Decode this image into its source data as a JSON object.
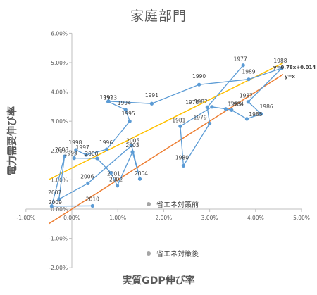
{
  "chart_data": {
    "type": "scatter",
    "title": "家庭部門",
    "xlabel": "実質GDP伸び率",
    "ylabel": "電力需要伸び率",
    "xlim": [
      -0.01,
      0.05
    ],
    "ylim": [
      -0.02,
      0.06
    ],
    "x_ticks": [
      "-1.00%",
      "0.00%",
      "1.00%",
      "2.00%",
      "3.00%",
      "4.00%",
      "5.00%"
    ],
    "y_ticks": [
      "6.00%",
      "5.00%",
      "4.00%",
      "3.00%",
      "2.00%",
      "1.00%",
      "0.00%",
      "-1.00%",
      "-2.00%"
    ],
    "grid": false,
    "colors": {
      "connected_series": "#5b9bd5",
      "trendline": "#ffc000",
      "identity_line": "#ed7d31",
      "legend_marker": "#a5a5a5"
    },
    "points": [
      {
        "label": "1977",
        "x": 0.0373,
        "y": 0.0491
      },
      {
        "label": "1978",
        "x": 0.0295,
        "y": 0.0348
      },
      {
        "label": "1979",
        "x": 0.03,
        "y": 0.0292
      },
      {
        "label": "1980",
        "x": 0.0243,
        "y": 0.0148
      },
      {
        "label": "1981",
        "x": 0.0236,
        "y": 0.0283
      },
      {
        "label": "1982",
        "x": 0.0305,
        "y": 0.0349
      },
      {
        "label": "1983",
        "x": 0.0335,
        "y": 0.0342
      },
      {
        "label": "1984",
        "x": 0.0348,
        "y": 0.0338
      },
      {
        "label": "1985",
        "x": 0.0381,
        "y": 0.0308
      },
      {
        "label": "1986",
        "x": 0.0412,
        "y": 0.0325
      },
      {
        "label": "1987",
        "x": 0.0384,
        "y": 0.0366
      },
      {
        "label": "1988",
        "x": 0.0457,
        "y": 0.0481
      },
      {
        "label": "1989",
        "x": 0.0385,
        "y": 0.0443
      },
      {
        "label": "1990",
        "x": 0.0277,
        "y": 0.0425
      },
      {
        "label": "1991",
        "x": 0.0174,
        "y": 0.036
      },
      {
        "label": "1992",
        "x": 0.008,
        "y": 0.0368
      },
      {
        "label": "1993",
        "x": 0.0079,
        "y": 0.0367
      },
      {
        "label": "1994",
        "x": 0.0117,
        "y": 0.0339
      },
      {
        "label": "1995",
        "x": 0.0126,
        "y": 0.03
      },
      {
        "label": "1996",
        "x": 0.0076,
        "y": 0.0204
      },
      {
        "label": "1997",
        "x": 0.0031,
        "y": 0.0185
      },
      {
        "label": "1998",
        "x": 0.0009,
        "y": 0.0202
      },
      {
        "label": "1999",
        "x": 0.0005,
        "y": 0.0174
      },
      {
        "label": "2000",
        "x": 0.0055,
        "y": 0.0173
      },
      {
        "label": "2001",
        "x": 0.0085,
        "y": 0.0124
      },
      {
        "label": "2002",
        "x": 0.0099,
        "y": 0.008
      },
      {
        "label": "2003",
        "x": 0.0132,
        "y": 0.0195
      },
      {
        "label": "2004",
        "x": 0.0148,
        "y": 0.0103
      },
      {
        "label": "2005",
        "x": 0.013,
        "y": 0.0217
      },
      {
        "label": "2006",
        "x": 0.0035,
        "y": 0.0088
      },
      {
        "label": "2007",
        "x": -0.0028,
        "y": 0.0034
      },
      {
        "label": "2008",
        "x": -0.0016,
        "y": 0.018
      },
      {
        "label": "2009",
        "x": -0.0044,
        "y": 0.001
      },
      {
        "label": "2010",
        "x": 0.0045,
        "y": 0.0011
      }
    ],
    "trendline": {
      "label": "y=0.78x+0.014",
      "slope": 0.78,
      "intercept": 0.014,
      "x_range": [
        -0.005,
        0.046
      ]
    },
    "identity_line": {
      "label": "y=x",
      "x_range": [
        -0.005,
        0.046
      ]
    },
    "legend": [
      "省エネ対策前",
      "省エネ対策後"
    ]
  }
}
